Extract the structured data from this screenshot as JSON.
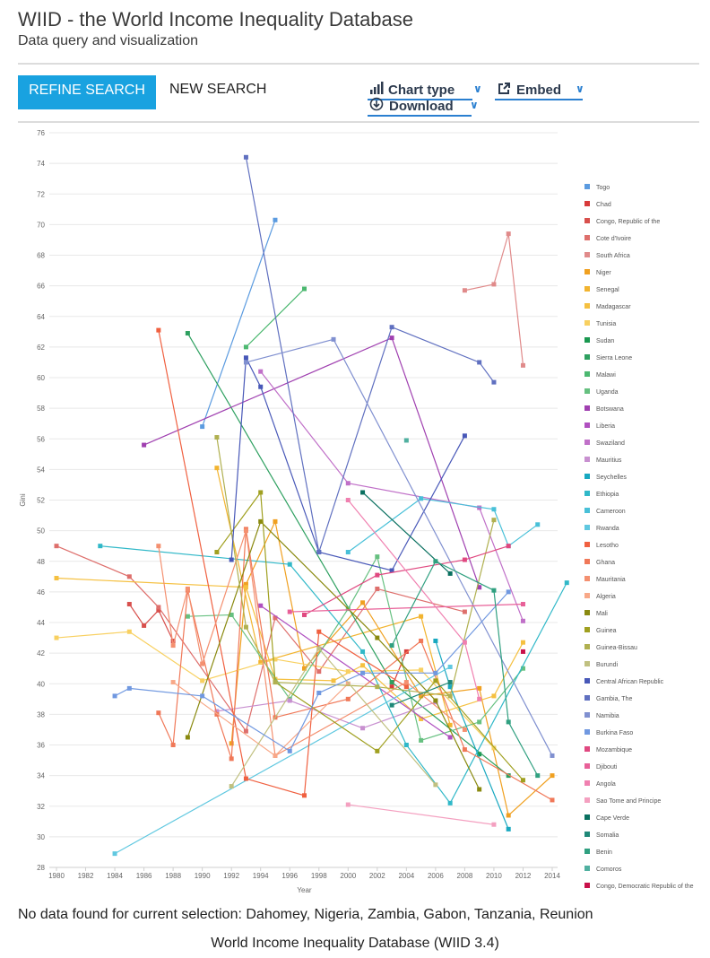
{
  "header": {
    "title": "WIID - the World Income Inequality Database",
    "subtitle": "Data query and visualization"
  },
  "toolbar": {
    "refine_label": "REFINE SEARCH",
    "new_label": "NEW SEARCH",
    "chart_type_label": "Chart type",
    "embed_label": "Embed",
    "download_label": "Download"
  },
  "icons": {
    "chart_type": "bar-chart-icon",
    "embed": "share-icon",
    "download": "download-icon",
    "dropdown": "chevron-down-icon"
  },
  "colors": {
    "accent": "#19a2e0",
    "link": "#2a7fd0"
  },
  "chart_data": {
    "type": "line",
    "xlabel": "Year",
    "ylabel": "Gini",
    "xlim": [
      1980,
      2014
    ],
    "ylim": [
      28,
      76
    ],
    "xticks": [
      1980,
      1982,
      1984,
      1986,
      1988,
      1990,
      1992,
      1994,
      1996,
      1998,
      2000,
      2002,
      2004,
      2006,
      2008,
      2010,
      2012,
      2014
    ],
    "yticks": [
      28,
      30,
      32,
      34,
      36,
      38,
      40,
      42,
      44,
      46,
      48,
      50,
      52,
      54,
      56,
      58,
      60,
      62,
      64,
      66,
      68,
      70,
      72,
      74,
      76
    ],
    "grid": true,
    "legend_position": "right",
    "series": [
      {
        "name": "Togo",
        "color": "#5b9be0",
        "points": [
          [
            1990,
            56.8
          ],
          [
            1995,
            70.3
          ]
        ]
      },
      {
        "name": "Chad",
        "color": "#d83a3a",
        "points": [
          [
            2003,
            39.8
          ],
          [
            2004,
            42.1
          ]
        ]
      },
      {
        "name": "Congo, Republic of the",
        "color": "#d8504d",
        "points": [
          [
            1985,
            45.2
          ],
          [
            1986,
            43.8
          ],
          [
            1987,
            44.8
          ],
          [
            1988,
            42.8
          ]
        ]
      },
      {
        "name": "Cote d'Ivoire",
        "color": "#de6f6c",
        "points": [
          [
            1980,
            49.0
          ],
          [
            1985,
            47.0
          ],
          [
            1987,
            45.0
          ],
          [
            1993,
            36.9
          ],
          [
            1995,
            44.3
          ],
          [
            1998,
            40.8
          ],
          [
            2002,
            46.2
          ],
          [
            2008,
            44.7
          ]
        ]
      },
      {
        "name": "South Africa",
        "color": "#e08a8a",
        "points": [
          [
            2008,
            65.7
          ],
          [
            2010,
            66.1
          ],
          [
            2011,
            69.4
          ],
          [
            2012,
            60.8
          ]
        ]
      },
      {
        "name": "Niger",
        "color": "#f0a020",
        "points": [
          [
            1992,
            36.1
          ],
          [
            1993,
            46.5
          ],
          [
            1995,
            50.6
          ],
          [
            1997,
            41.0
          ],
          [
            2001,
            45.3
          ],
          [
            2005,
            39.2
          ],
          [
            2009,
            39.7
          ],
          [
            2011,
            31.4
          ],
          [
            2014,
            34.0
          ]
        ]
      },
      {
        "name": "Senegal",
        "color": "#f2b430",
        "points": [
          [
            1991,
            54.1
          ],
          [
            1994,
            41.4
          ],
          [
            2005,
            44.4
          ],
          [
            2007,
            37.3
          ]
        ]
      },
      {
        "name": "Madagascar",
        "color": "#f5c040",
        "points": [
          [
            1980,
            46.9
          ],
          [
            1993,
            46.3
          ],
          [
            1995,
            40.3
          ],
          [
            1999,
            40.2
          ],
          [
            2001,
            41.2
          ],
          [
            2005,
            37.7
          ],
          [
            2010,
            39.2
          ],
          [
            2012,
            42.7
          ]
        ]
      },
      {
        "name": "Tunisia",
        "color": "#f8d060",
        "points": [
          [
            1980,
            43.0
          ],
          [
            1985,
            43.4
          ],
          [
            1990,
            40.2
          ],
          [
            1995,
            41.6
          ],
          [
            2000,
            40.8
          ],
          [
            2005,
            40.9
          ],
          [
            2010,
            35.8
          ]
        ]
      },
      {
        "name": "Sudan",
        "color": "#1a9850",
        "points": [
          [
            2009,
            35.4
          ]
        ]
      },
      {
        "name": "Sierra Leone",
        "color": "#2ea060",
        "points": [
          [
            1989,
            62.9
          ],
          [
            2003,
            40.1
          ],
          [
            2011,
            34.0
          ]
        ]
      },
      {
        "name": "Malawi",
        "color": "#4cb870",
        "points": [
          [
            1993,
            62.0
          ],
          [
            1997,
            65.8
          ]
        ]
      },
      {
        "name": "Uganda",
        "color": "#66c080",
        "points": [
          [
            1989,
            44.4
          ],
          [
            1992,
            44.5
          ],
          [
            1996,
            39.0
          ],
          [
            2000,
            44.9
          ],
          [
            2002,
            48.3
          ],
          [
            2005,
            36.3
          ],
          [
            2009,
            37.5
          ],
          [
            2012,
            41.0
          ]
        ]
      },
      {
        "name": "Botswana",
        "color": "#a040b0",
        "points": [
          [
            1986,
            55.6
          ],
          [
            2003,
            62.6
          ],
          [
            2009,
            46.3
          ]
        ]
      },
      {
        "name": "Liberia",
        "color": "#b050c0",
        "points": [
          [
            1994,
            45.1
          ],
          [
            2007,
            36.5
          ]
        ]
      },
      {
        "name": "Swaziland",
        "color": "#c070c8",
        "points": [
          [
            1994,
            60.4
          ],
          [
            2000,
            53.1
          ],
          [
            2009,
            51.5
          ],
          [
            2012,
            44.1
          ]
        ]
      },
      {
        "name": "Mauritius",
        "color": "#c890d0",
        "points": [
          [
            1991,
            38.2
          ],
          [
            1996,
            38.9
          ],
          [
            2001,
            37.1
          ],
          [
            2006,
            38.8
          ]
        ]
      },
      {
        "name": "Seychelles",
        "color": "#18a8c0",
        "points": [
          [
            2006,
            42.8
          ],
          [
            2007,
            39.8
          ],
          [
            2011,
            30.5
          ]
        ]
      },
      {
        "name": "Ethiopia",
        "color": "#30b8c8",
        "points": [
          [
            1983,
            49.0
          ],
          [
            1996,
            47.8
          ],
          [
            2001,
            42.1
          ],
          [
            2004,
            36.0
          ],
          [
            2007,
            32.2
          ],
          [
            2015,
            46.6
          ]
        ]
      },
      {
        "name": "Cameroon",
        "color": "#48c0d8",
        "points": [
          [
            2000,
            48.6
          ],
          [
            2005,
            52.1
          ],
          [
            2010,
            51.4
          ],
          [
            2011,
            49.0
          ],
          [
            2013,
            50.4
          ]
        ]
      },
      {
        "name": "Rwanda",
        "color": "#60c8e0",
        "points": [
          [
            1984,
            28.9
          ],
          [
            2007,
            41.1
          ]
        ]
      },
      {
        "name": "Lesotho",
        "color": "#f06040",
        "points": [
          [
            1987,
            63.1
          ],
          [
            1993,
            33.8
          ],
          [
            1997,
            32.7
          ],
          [
            1998,
            43.4
          ],
          [
            2004,
            39.8
          ]
        ]
      },
      {
        "name": "Ghana",
        "color": "#f07858",
        "points": [
          [
            1987,
            38.1
          ],
          [
            1988,
            36.0
          ],
          [
            1989,
            46.1
          ],
          [
            1991,
            38.0
          ],
          [
            1992,
            35.1
          ],
          [
            1993,
            50.1
          ],
          [
            1995,
            37.8
          ],
          [
            2000,
            39.0
          ],
          [
            2005,
            42.8
          ],
          [
            2008,
            35.7
          ],
          [
            2014,
            32.4
          ]
        ]
      },
      {
        "name": "Mauritania",
        "color": "#f49070",
        "points": [
          [
            1987,
            49.0
          ],
          [
            1988,
            42.5
          ],
          [
            1989,
            46.2
          ],
          [
            1990,
            41.3
          ],
          [
            1993,
            50.0
          ],
          [
            1995,
            35.3
          ],
          [
            2004,
            40.1
          ],
          [
            2008,
            37.0
          ]
        ]
      },
      {
        "name": "Algeria",
        "color": "#f8a888",
        "points": [
          [
            1988,
            40.1
          ],
          [
            1995,
            35.3
          ],
          [
            2000,
            40.0
          ]
        ]
      },
      {
        "name": "Mali",
        "color": "#8a8a10",
        "points": [
          [
            1989,
            36.5
          ],
          [
            1994,
            50.6
          ],
          [
            2002,
            43.0
          ],
          [
            2006,
            38.9
          ],
          [
            2009,
            33.1
          ]
        ]
      },
      {
        "name": "Guinea",
        "color": "#a0a020",
        "points": [
          [
            1991,
            48.6
          ],
          [
            1994,
            52.5
          ],
          [
            1995,
            40.1
          ],
          [
            2002,
            35.6
          ],
          [
            2006,
            40.2
          ],
          [
            2012,
            33.7
          ]
        ]
      },
      {
        "name": "Guinea-Bissau",
        "color": "#b0b050",
        "points": [
          [
            1991,
            56.1
          ],
          [
            1993,
            43.7
          ],
          [
            1995,
            40.1
          ],
          [
            2002,
            39.8
          ],
          [
            2007,
            39.2
          ],
          [
            2010,
            50.7
          ]
        ]
      },
      {
        "name": "Burundi",
        "color": "#c0c080",
        "points": [
          [
            1992,
            33.3
          ],
          [
            1998,
            42.3
          ],
          [
            2006,
            33.4
          ]
        ]
      },
      {
        "name": "Central African Republic",
        "color": "#4858b8",
        "points": [
          [
            1992,
            48.1
          ],
          [
            1993,
            61.3
          ],
          [
            1994,
            59.4
          ],
          [
            1998,
            48.6
          ],
          [
            2003,
            47.4
          ],
          [
            2008,
            56.2
          ]
        ]
      },
      {
        "name": "Gambia, The",
        "color": "#6070c0",
        "points": [
          [
            1993,
            74.4
          ],
          [
            1998,
            48.6
          ],
          [
            2003,
            63.3
          ],
          [
            2009,
            61.0
          ],
          [
            2010,
            59.7
          ]
        ]
      },
      {
        "name": "Namibia",
        "color": "#8090d0",
        "points": [
          [
            1993,
            61.0
          ],
          [
            1999,
            62.5
          ],
          [
            2014,
            35.3
          ]
        ]
      },
      {
        "name": "Burkina Faso",
        "color": "#7098e0",
        "points": [
          [
            1984,
            39.2
          ],
          [
            1985,
            39.7
          ],
          [
            1990,
            39.2
          ],
          [
            1996,
            35.6
          ],
          [
            1998,
            39.4
          ],
          [
            2001,
            40.7
          ],
          [
            2006,
            40.7
          ],
          [
            2011,
            46.0
          ]
        ]
      },
      {
        "name": "Mozambique",
        "color": "#e04880",
        "points": [
          [
            1997,
            44.5
          ],
          [
            2002,
            47.1
          ],
          [
            2008,
            48.1
          ],
          [
            2011,
            49.0
          ]
        ]
      },
      {
        "name": "Djibouti",
        "color": "#e86098",
        "points": [
          [
            1996,
            44.7
          ],
          [
            2012,
            45.2
          ]
        ]
      },
      {
        "name": "Angola",
        "color": "#f080b0",
        "points": [
          [
            2000,
            52.0
          ],
          [
            2008,
            42.7
          ],
          [
            2009,
            39.0
          ]
        ]
      },
      {
        "name": "Sao Tome and Principe",
        "color": "#f4a0c0",
        "points": [
          [
            2000,
            32.1
          ],
          [
            2010,
            30.8
          ]
        ]
      },
      {
        "name": "Cape Verde",
        "color": "#0a7060",
        "points": [
          [
            2001,
            52.5
          ],
          [
            2007,
            47.2
          ]
        ]
      },
      {
        "name": "Somalia",
        "color": "#208878",
        "points": [
          [
            2003,
            38.6
          ],
          [
            2007,
            40.1
          ]
        ]
      },
      {
        "name": "Benin",
        "color": "#30a080",
        "points": [
          [
            2003,
            42.5
          ],
          [
            2006,
            48.0
          ],
          [
            2010,
            46.1
          ],
          [
            2011,
            37.5
          ],
          [
            2013,
            34.0
          ]
        ]
      },
      {
        "name": "Comoros",
        "color": "#50b0a0",
        "points": [
          [
            2004,
            55.9
          ]
        ]
      },
      {
        "name": "Congo, Democratic Republic of the",
        "color": "#c8104a",
        "points": [
          [
            2012,
            42.1
          ]
        ]
      }
    ]
  },
  "footer": {
    "no_data_note": "No data found for current selection: Dahomey, Nigeria, Zambia, Gabon, Tanzania, Reunion",
    "credit": "World Income Inequality Database (WIID 3.4)"
  }
}
